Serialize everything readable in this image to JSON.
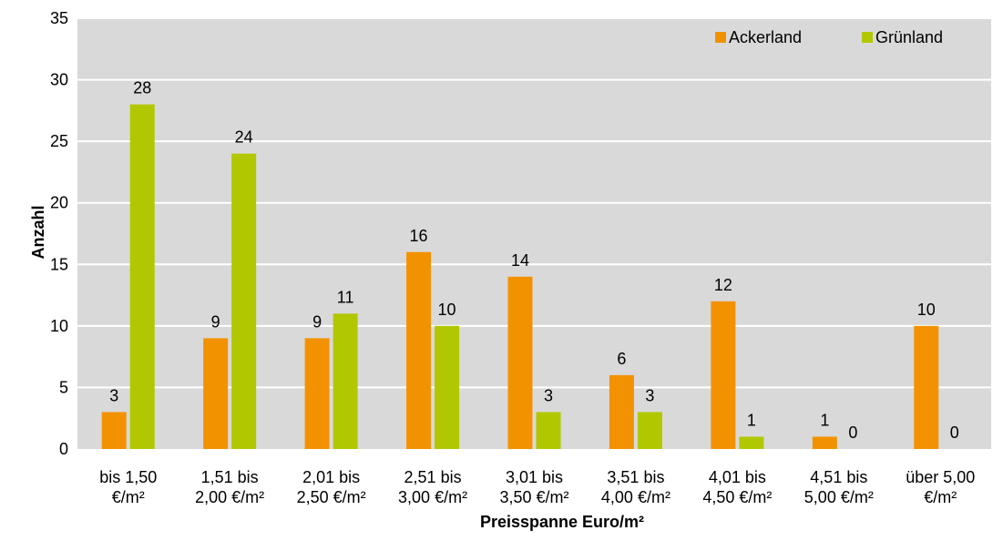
{
  "chart_data": {
    "type": "bar",
    "categories": [
      [
        "bis 1,50",
        "€/m²"
      ],
      [
        "1,51 bis",
        "2,00 €/m²"
      ],
      [
        "2,01 bis",
        "2,50 €/m²"
      ],
      [
        "2,51 bis",
        "3,00 €/m²"
      ],
      [
        "3,01 bis",
        "3,50 €/m²"
      ],
      [
        "3,51 bis",
        "4,00 €/m²"
      ],
      [
        "4,01 bis",
        "4,50 €/m²"
      ],
      [
        "4,51 bis",
        "5,00 €/m²"
      ],
      [
        "über 5,00",
        "€/m²"
      ]
    ],
    "series": [
      {
        "name": "Ackerland",
        "color": "#f39200",
        "values": [
          3,
          9,
          9,
          16,
          14,
          6,
          12,
          1,
          10
        ]
      },
      {
        "name": "Grünland",
        "color": "#b1c800",
        "values": [
          28,
          24,
          11,
          10,
          3,
          3,
          1,
          0,
          0
        ]
      }
    ],
    "xlabel": "Preisspanne Euro/m²",
    "ylabel": "Anzahl",
    "ylim": [
      0,
      35
    ],
    "yticks": [
      0,
      5,
      10,
      15,
      20,
      25,
      30,
      35
    ],
    "grid": true,
    "legend_position": "top-right",
    "plot_background": "#d9d9d9",
    "grid_color": "#ffffff"
  }
}
